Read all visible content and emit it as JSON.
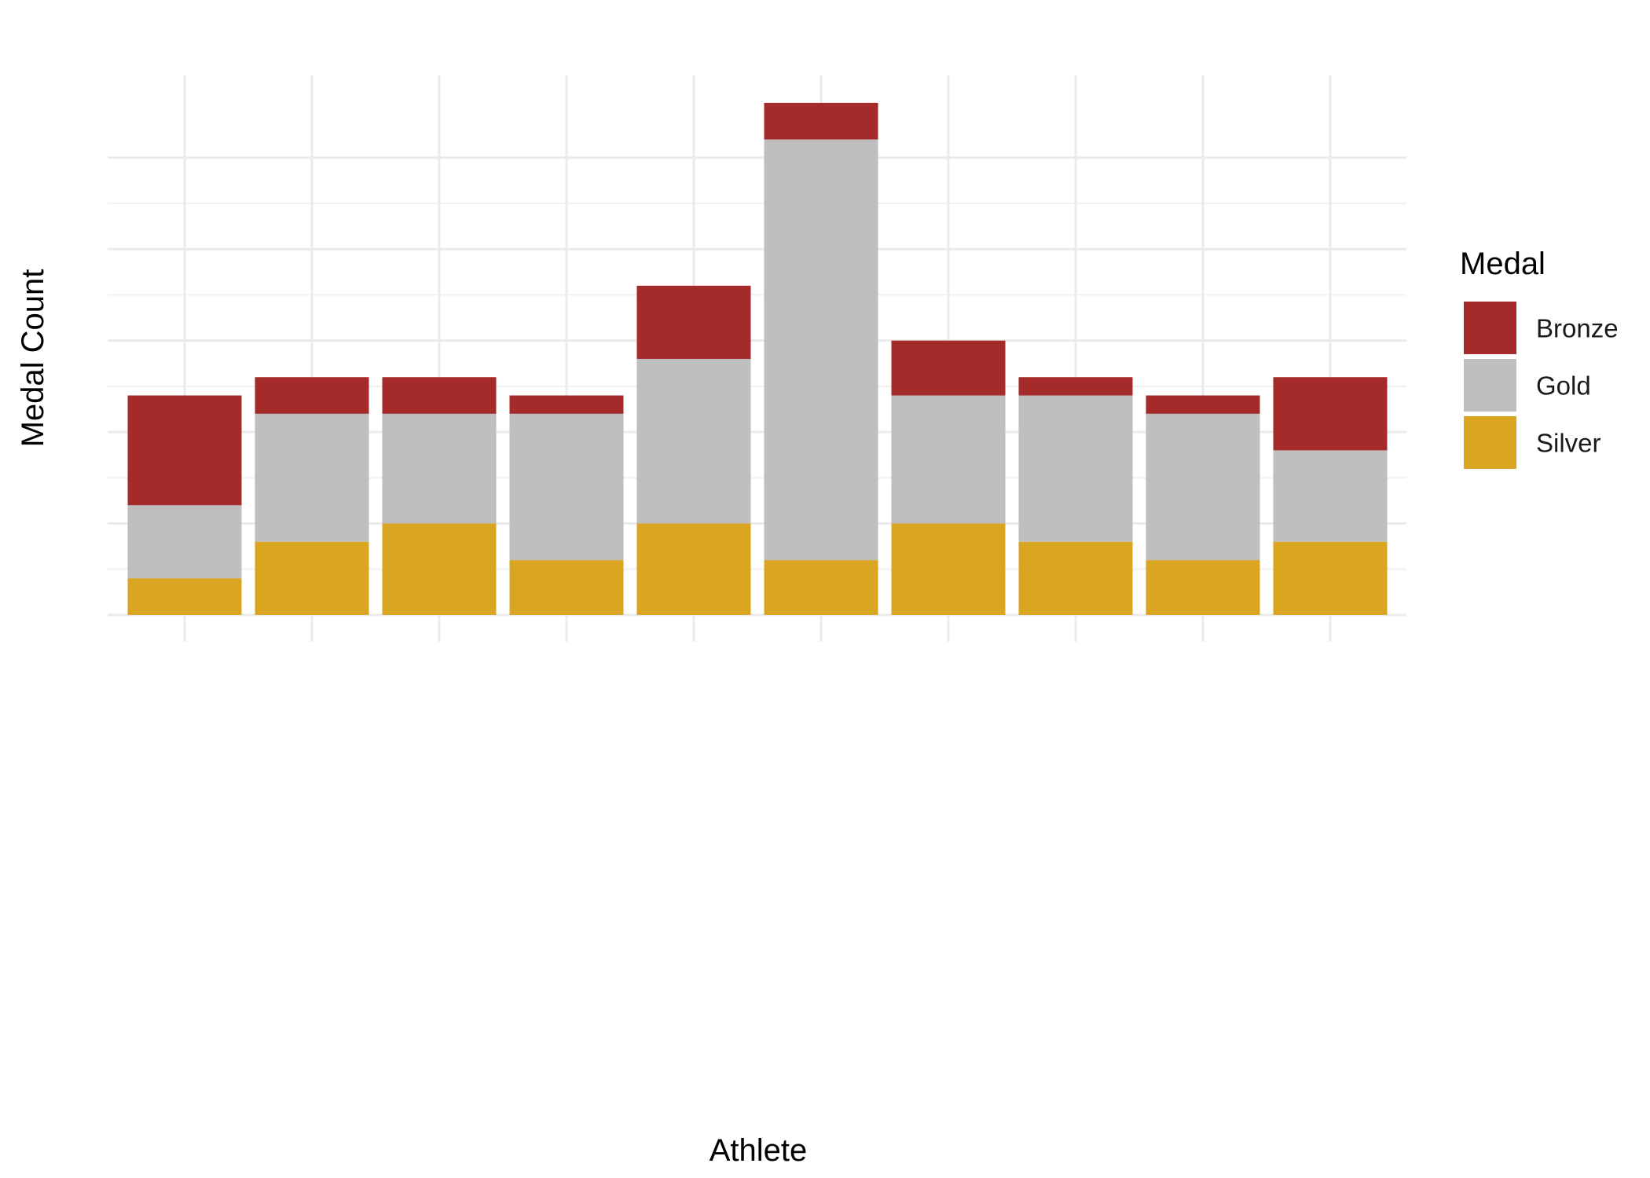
{
  "chart_data": {
    "type": "bar",
    "stacked": true,
    "categories": [
      "",
      "",
      "",
      "",
      "",
      "",
      "",
      "",
      "",
      ""
    ],
    "series": [
      {
        "name": "Silver",
        "color": "#DAA520",
        "values": [
          2,
          4,
          5,
          3,
          5,
          3,
          5,
          4,
          3,
          4
        ]
      },
      {
        "name": "Gold",
        "color": "#BEBEBE",
        "values": [
          4,
          7,
          6,
          8,
          9,
          23,
          7,
          8,
          8,
          5
        ]
      },
      {
        "name": "Bronze",
        "color": "#A52A2A",
        "values": [
          6,
          2,
          2,
          1,
          4,
          2,
          3,
          1,
          1,
          4
        ]
      }
    ],
    "legend": {
      "title": "Medal",
      "position": "right",
      "order": [
        "Bronze",
        "Gold",
        "Silver"
      ]
    },
    "xlabel": "Athlete",
    "ylabel": "Medal Count",
    "ylim": [
      0,
      29.5
    ],
    "y_gridlines": [
      0,
      5,
      10,
      15,
      20,
      25
    ],
    "grid": true
  }
}
